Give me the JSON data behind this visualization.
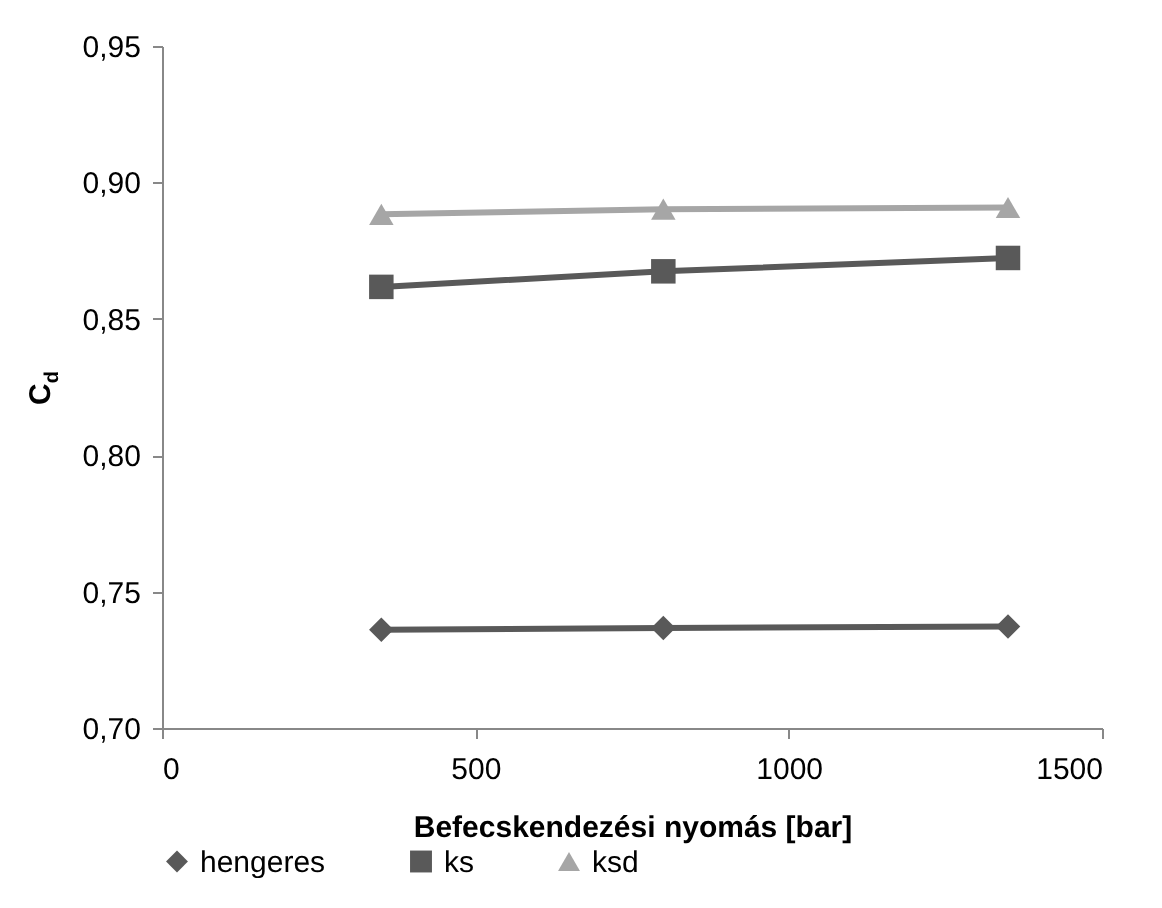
{
  "chart_data": {
    "type": "line",
    "xlabel": "Befecskendezési nyomás [bar]",
    "ylabel": "C$_{d}$",
    "x": [
      350,
      800,
      1350
    ],
    "series": [
      {
        "name": "hengeres",
        "color": "#595959",
        "marker": "diamond",
        "values": [
          0.736,
          0.7367,
          0.7372
        ]
      },
      {
        "name": "ks",
        "color": "#595959",
        "marker": "square",
        "values": [
          0.8617,
          0.8674,
          0.8723
        ]
      },
      {
        "name": "ksd",
        "color": "#a6a6a6",
        "marker": "triangle",
        "values": [
          0.8883,
          0.8902,
          0.8908
        ]
      }
    ],
    "xlim": [
      0,
      1500
    ],
    "xticks": [
      0,
      500,
      1000,
      1500
    ],
    "ylim": [
      0.7,
      0.95
    ],
    "yticks": [
      {
        "value": 0.7,
        "label": "0,70"
      },
      {
        "value": 0.75,
        "label": "0,75"
      },
      {
        "value": 0.8,
        "label": "0,80"
      },
      {
        "value": 0.85,
        "label": "0,85"
      },
      {
        "value": 0.9,
        "label": "0,90"
      },
      {
        "value": 0.95,
        "label": "0,95"
      }
    ],
    "grid": false,
    "legend": "bottom",
    "line_style": "solid"
  }
}
